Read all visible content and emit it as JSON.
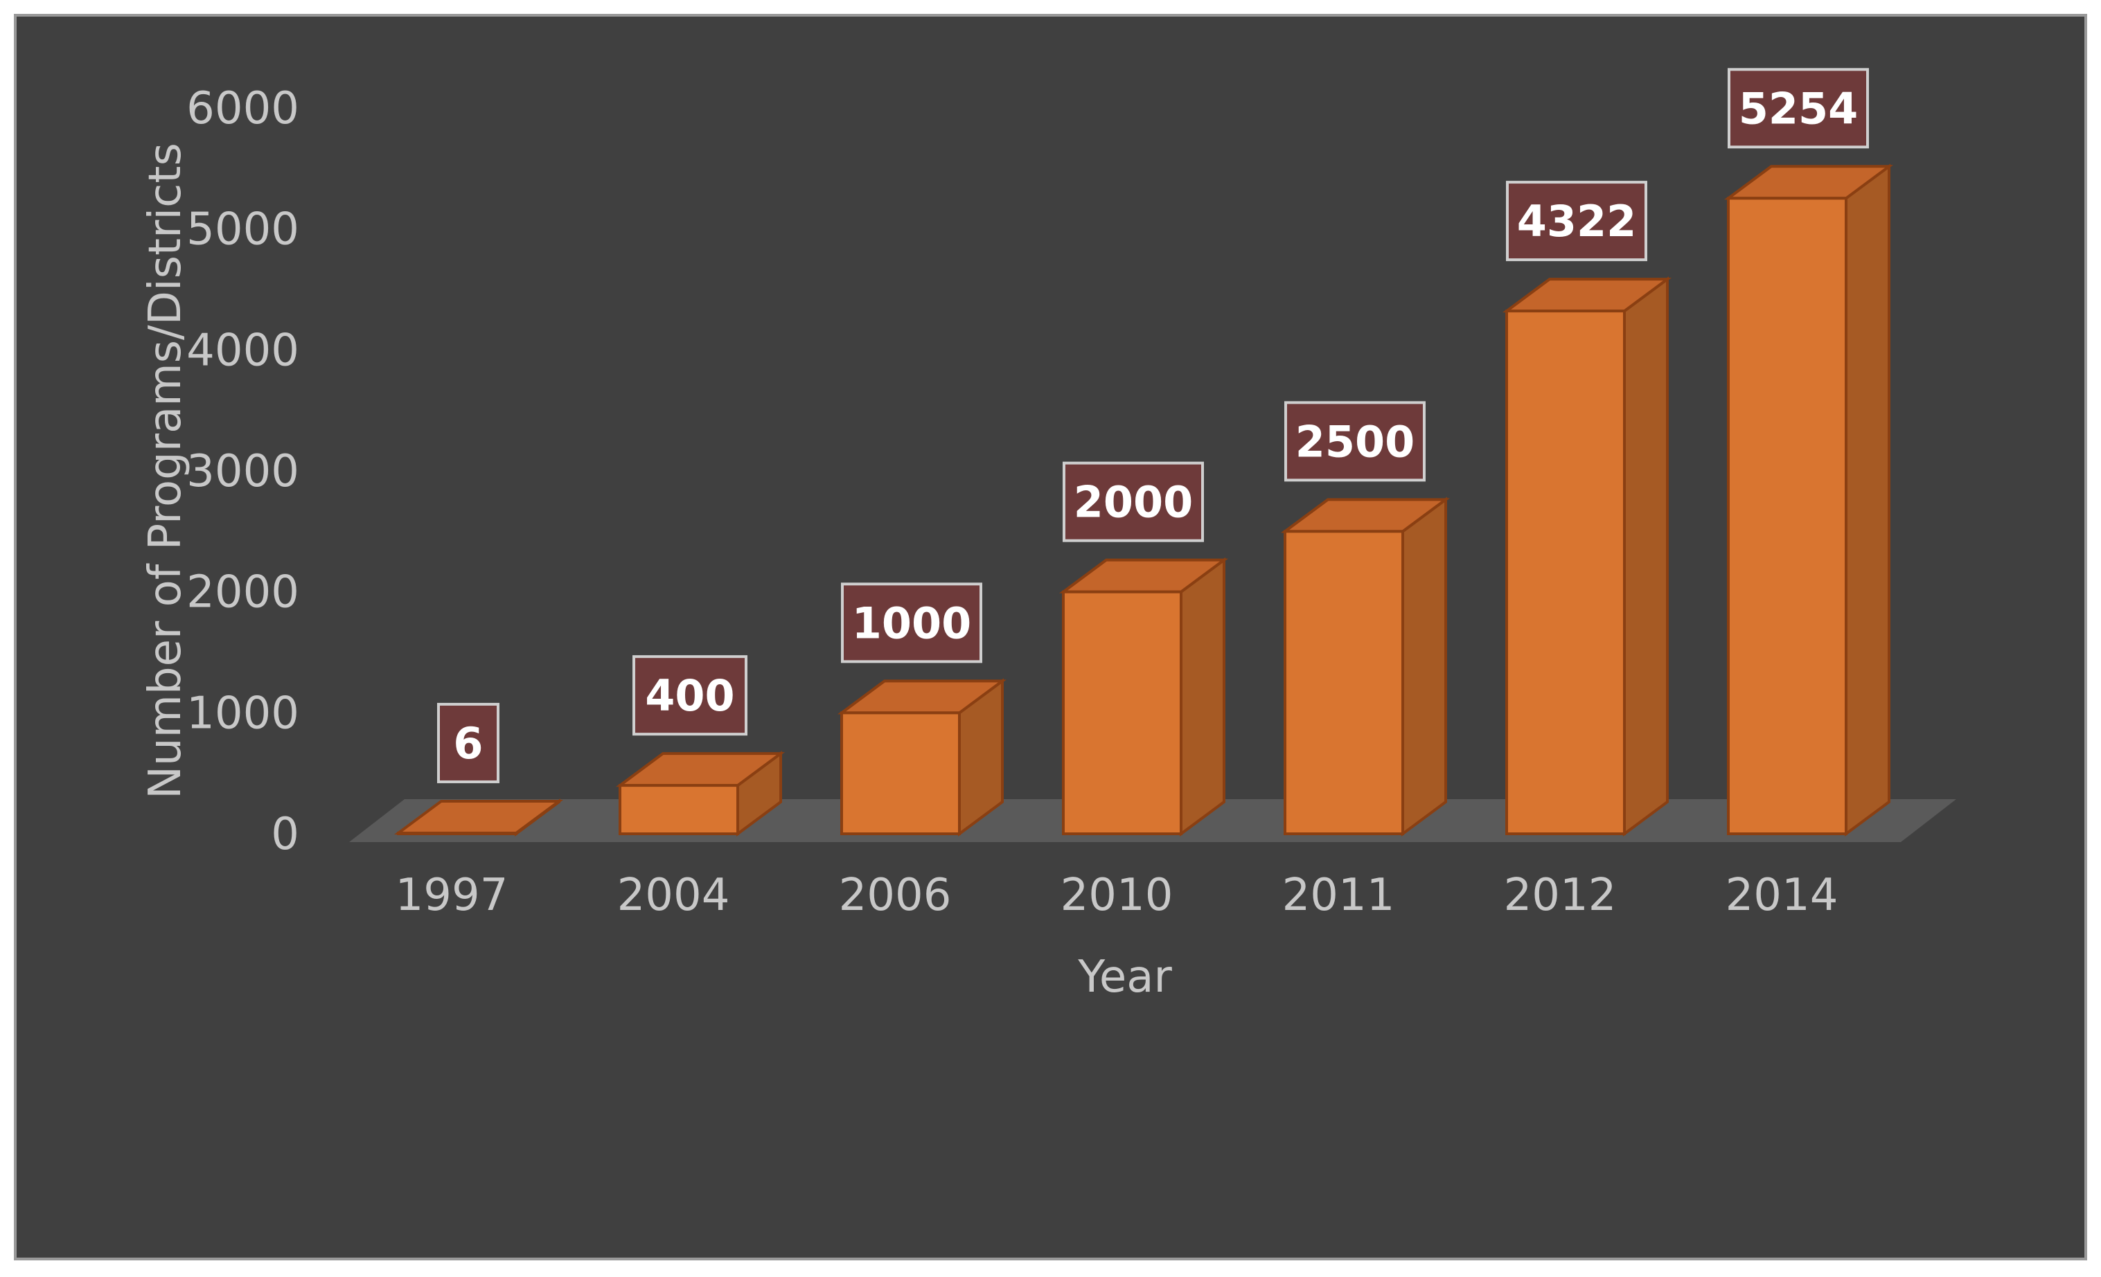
{
  "chart_data": {
    "type": "bar",
    "categories": [
      "1997",
      "2004",
      "2006",
      "2010",
      "2011",
      "2012",
      "2014"
    ],
    "values": [
      6,
      400,
      1000,
      2000,
      2500,
      4322,
      5254
    ],
    "data_labels": [
      "6",
      "400",
      "1000",
      "2000",
      "2500",
      "4322",
      "5254"
    ],
    "y_ticks": [
      "0",
      "1000",
      "2000",
      "3000",
      "4000",
      "5000",
      "6000"
    ],
    "xlabel": "Year",
    "ylabel": "Number of Programs/Districts",
    "ylim": [
      0,
      6000
    ],
    "grid": false,
    "legend": "none",
    "style": "3d-column",
    "colors": {
      "background": "#404040",
      "bar_front": "#d97530",
      "bar_side": "#a65a24",
      "bar_top": "#c4652a",
      "bar_outline": "#8a3f12",
      "floor": "#5a5a5a",
      "label_box": "#6e3a3a",
      "text": "#c8c8c8"
    }
  }
}
